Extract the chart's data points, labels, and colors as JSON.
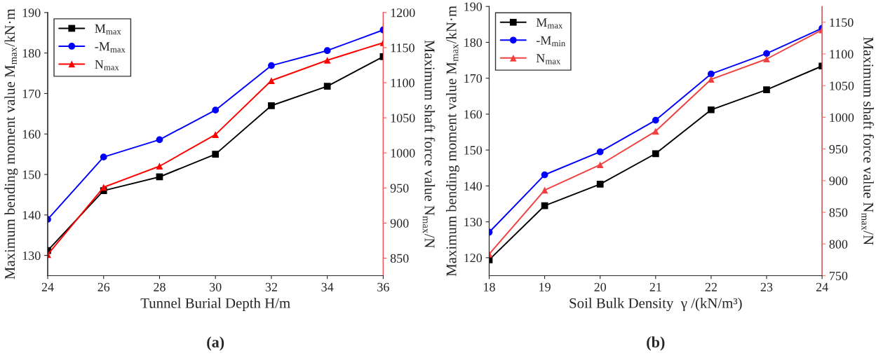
{
  "chart_data": [
    {
      "type": "line",
      "xlabel": "Tunnel Burial Depth H/m",
      "ylabel": "Maximum bending moment value M$_{max}$/kN·m",
      "y2label": "Maximum shaft force value N$_{max}$/N",
      "x": [
        24,
        26,
        28,
        30,
        32,
        34,
        36
      ],
      "xlim": [
        24,
        36
      ],
      "xticks": [
        24,
        26,
        28,
        30,
        32,
        34,
        36
      ],
      "ylim": [
        125,
        190
      ],
      "yticks": [
        130,
        140,
        150,
        160,
        170,
        180,
        190
      ],
      "y2lim": [
        825,
        1200
      ],
      "y2ticks": [
        850,
        900,
        950,
        1000,
        1050,
        1100,
        1150,
        1200
      ],
      "legend": "top left",
      "grid": false,
      "annotations": [
        "(a)"
      ],
      "series": [
        {
          "name": "M$_{max}$",
          "color": "#000000",
          "marker": "square",
          "values": [
            131.2,
            146,
            149.4,
            155,
            167,
            171.8,
            179.1
          ]
        },
        {
          "name": "-M$_{max}$",
          "color": "#0000ff",
          "marker": "circle",
          "values": [
            138.9,
            154.3,
            158.6,
            165.9,
            176.9,
            180.6,
            185.7
          ]
        },
        {
          "name": "N$_{max}$",
          "color": "#ff0000",
          "marker": "triangle",
          "axis": "y2",
          "values": [
            855,
            951,
            981,
            1026,
            1103,
            1132,
            1157
          ]
        }
      ]
    },
    {
      "type": "line",
      "xlabel": "Soil Bulk Density  γ /(kN/m³)",
      "ylabel": "Maximum bending moment value M$_{max}$/kN·m",
      "y2label": "Maximum shaft force value N$_{max}$/N",
      "x": [
        18,
        19,
        20,
        21,
        22,
        23,
        24
      ],
      "xlim": [
        18,
        24
      ],
      "xticks": [
        18,
        19,
        20,
        21,
        22,
        23,
        24
      ],
      "ylim": [
        115,
        190
      ],
      "yticks": [
        120,
        130,
        140,
        150,
        160,
        170,
        180,
        190
      ],
      "y2lim": [
        750,
        1175
      ],
      "y2ticks": [
        750,
        800,
        850,
        900,
        950,
        1000,
        1050,
        1100,
        1150
      ],
      "legend": "top left",
      "grid": false,
      "annotations": [
        "(b)"
      ],
      "series": [
        {
          "name": "M$_{max}$",
          "color": "#000000",
          "marker": "square",
          "values": [
            119.4,
            134.5,
            140.5,
            149,
            161.2,
            166.8,
            173.4
          ]
        },
        {
          "name": "-M$_{min}$",
          "color": "#0000ff",
          "marker": "circle",
          "values": [
            127.1,
            143.1,
            149.5,
            158.3,
            171.2,
            176.9,
            183.9
          ]
        },
        {
          "name": "N$_{max}$",
          "color": "#f04040",
          "marker": "triangle",
          "axis": "y2",
          "values": [
            784,
            885,
            925,
            978,
            1060,
            1092,
            1138
          ]
        }
      ]
    }
  ]
}
